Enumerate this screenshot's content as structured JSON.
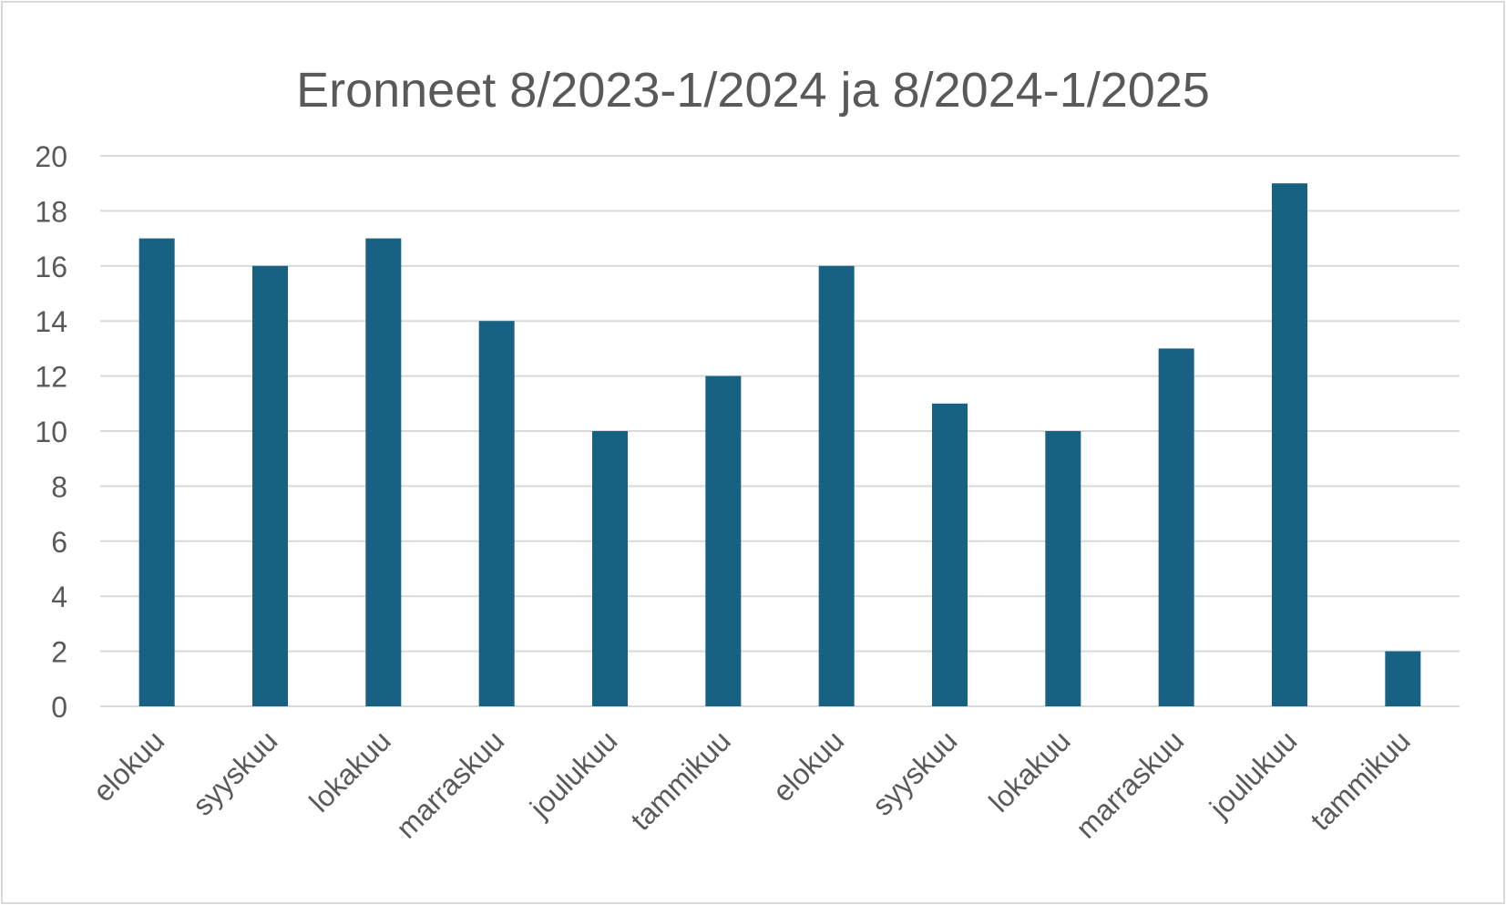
{
  "chart_data": {
    "type": "bar",
    "title": "Eronneet 8/2023-1/2024 ja 8/2024-1/2025",
    "xlabel": "",
    "ylabel": "",
    "categories": [
      "elokuu",
      "syyskuu",
      "lokakuu",
      "marraskuu",
      "joulukuu",
      "tammikuu",
      "elokuu",
      "syyskuu",
      "lokakuu",
      "marraskuu",
      "joulukuu",
      "tammikuu"
    ],
    "values": [
      17,
      16,
      17,
      14,
      10,
      12,
      16,
      11,
      10,
      13,
      19,
      2
    ],
    "ylim": [
      0,
      20
    ],
    "yticks": [
      "0",
      "2",
      "4",
      "6",
      "8",
      "10",
      "12",
      "14",
      "16",
      "18",
      "20"
    ],
    "grid": true,
    "legend": "none",
    "colors": {
      "bar": "#176183",
      "grid": "#d9d9d9",
      "text": "#595959"
    }
  }
}
